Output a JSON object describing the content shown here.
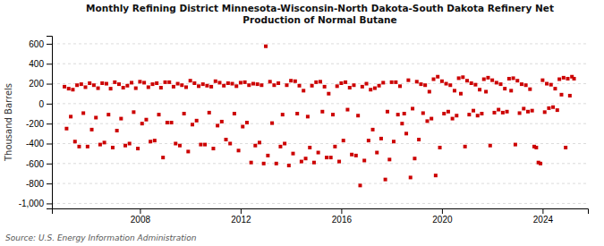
{
  "chart_data": {
    "type": "scatter",
    "title": "Monthly Refining District Minnesota-Wisconsin-North Dakota-South Dakota Refinery Net\nProduction of Normal Butane",
    "y_label": "Thousand Barrels",
    "annotations": [
      {
        "text": "Source: U.S. Energy Information Administration"
      }
    ],
    "color": "#cc0000",
    "marker": "square",
    "grid": true,
    "xlim": [
      2004.5,
      2025.8
    ],
    "xticks": [
      2008,
      2012,
      2016,
      2020,
      2024
    ],
    "ylim": [
      -1050,
      680
    ],
    "yticks": [
      {
        "value": -1000,
        "label": "-1,000"
      },
      -800,
      -600,
      -400,
      -200,
      0,
      200,
      400,
      600
    ],
    "x": [
      2005,
      2005.0833333333333,
      2005.1666666666667,
      2005.25,
      2005.3333333333333,
      2005.4166666666667,
      2005.5,
      2005.5833333333333,
      2005.6666666666667,
      2005.75,
      2005.8333333333333,
      2005.9166666666667,
      2006,
      2006.0833333333333,
      2006.1666666666667,
      2006.25,
      2006.3333333333333,
      2006.4166666666667,
      2006.5,
      2006.5833333333333,
      2006.6666666666667,
      2006.75,
      2006.8333333333333,
      2006.9166666666667,
      2007,
      2007.0833333333333,
      2007.1666666666667,
      2007.25,
      2007.3333333333333,
      2007.4166666666667,
      2007.5,
      2007.5833333333333,
      2007.6666666666667,
      2007.75,
      2007.8333333333333,
      2007.9166666666667,
      2008,
      2008.0833333333333,
      2008.1666666666667,
      2008.25,
      2008.3333333333333,
      2008.4166666666667,
      2008.5,
      2008.5833333333333,
      2008.6666666666667,
      2008.75,
      2008.8333333333333,
      2008.9166666666667,
      2009,
      2009.0833333333333,
      2009.1666666666667,
      2009.25,
      2009.3333333333333,
      2009.4166666666667,
      2009.5,
      2009.5833333333333,
      2009.6666666666667,
      2009.75,
      2009.8333333333333,
      2009.9166666666667,
      2010,
      2010.0833333333333,
      2010.1666666666667,
      2010.25,
      2010.3333333333333,
      2010.4166666666667,
      2010.5,
      2010.5833333333333,
      2010.6666666666667,
      2010.75,
      2010.8333333333333,
      2010.9166666666667,
      2011,
      2011.0833333333333,
      2011.1666666666667,
      2011.25,
      2011.3333333333333,
      2011.4166666666667,
      2011.5,
      2011.5833333333333,
      2011.6666666666667,
      2011.75,
      2011.8333333333333,
      2011.9166666666667,
      2012,
      2012.0833333333333,
      2012.1666666666667,
      2012.25,
      2012.3333333333333,
      2012.4166666666667,
      2012.5,
      2012.5833333333333,
      2012.6666666666667,
      2012.75,
      2012.8333333333333,
      2012.9166666666667,
      2013,
      2013.0833333333333,
      2013.1666666666667,
      2013.25,
      2013.3333333333333,
      2013.4166666666667,
      2013.5,
      2013.5833333333333,
      2013.6666666666667,
      2013.75,
      2013.8333333333333,
      2013.9166666666667,
      2014,
      2014.0833333333333,
      2014.1666666666667,
      2014.25,
      2014.3333333333333,
      2014.4166666666667,
      2014.5,
      2014.5833333333333,
      2014.6666666666667,
      2014.75,
      2014.8333333333333,
      2014.9166666666667,
      2015,
      2015.0833333333333,
      2015.1666666666667,
      2015.25,
      2015.3333333333333,
      2015.4166666666667,
      2015.5,
      2015.5833333333333,
      2015.6666666666667,
      2015.75,
      2015.8333333333333,
      2015.9166666666667,
      2016,
      2016.0833333333333,
      2016.1666666666667,
      2016.25,
      2016.3333333333333,
      2016.4166666666667,
      2016.5,
      2016.5833333333333,
      2016.6666666666667,
      2016.75,
      2016.8333333333333,
      2016.9166666666667,
      2017,
      2017.0833333333333,
      2017.1666666666667,
      2017.25,
      2017.3333333333333,
      2017.4166666666667,
      2017.5,
      2017.5833333333333,
      2017.6666666666667,
      2017.75,
      2017.8333333333333,
      2017.9166666666667,
      2018,
      2018.0833333333333,
      2018.1666666666667,
      2018.25,
      2018.3333333333333,
      2018.4166666666667,
      2018.5,
      2018.5833333333333,
      2018.6666666666667,
      2018.75,
      2018.8333333333333,
      2018.9166666666667,
      2019,
      2019.0833333333333,
      2019.1666666666667,
      2019.25,
      2019.3333333333333,
      2019.4166666666667,
      2019.5,
      2019.5833333333333,
      2019.6666666666667,
      2019.75,
      2019.8333333333333,
      2019.9166666666667,
      2020,
      2020.0833333333333,
      2020.1666666666667,
      2020.25,
      2020.3333333333333,
      2020.4166666666667,
      2020.5,
      2020.5833333333333,
      2020.6666666666667,
      2020.75,
      2020.8333333333333,
      2020.9166666666667,
      2021,
      2021.0833333333333,
      2021.1666666666667,
      2021.25,
      2021.3333333333333,
      2021.4166666666667,
      2021.5,
      2021.5833333333333,
      2021.6666666666667,
      2021.75,
      2021.8333333333333,
      2021.9166666666667,
      2022,
      2022.0833333333333,
      2022.1666666666667,
      2022.25,
      2022.3333333333333,
      2022.4166666666667,
      2022.5,
      2022.5833333333333,
      2022.6666666666667,
      2022.75,
      2022.8333333333333,
      2022.9166666666667,
      2023,
      2023.0833333333333,
      2023.1666666666667,
      2023.25,
      2023.3333333333333,
      2023.4166666666667,
      2023.5,
      2023.5833333333333,
      2023.6666666666667,
      2023.75,
      2023.8333333333333,
      2023.9166666666667,
      2024,
      2024.0833333333333,
      2024.1666666666667,
      2024.25,
      2024.3333333333333,
      2024.4166666666667,
      2024.5,
      2024.5833333333333,
      2024.6666666666667,
      2024.75,
      2024.8333333333333,
      2024.9166666666667,
      2025,
      2025.0833333333333,
      2025.1666666666667,
      2025.25
    ],
    "values": [
      170,
      -250,
      150,
      -130,
      140,
      -380,
      185,
      -430,
      195,
      -95,
      165,
      -430,
      205,
      -260,
      185,
      -140,
      155,
      -410,
      205,
      -390,
      200,
      -110,
      150,
      -440,
      215,
      -270,
      195,
      -150,
      160,
      -420,
      180,
      -400,
      210,
      -85,
      155,
      -450,
      220,
      -200,
      210,
      -160,
      165,
      -380,
      195,
      -370,
      205,
      -110,
      160,
      -540,
      215,
      -190,
      215,
      -190,
      170,
      -400,
      200,
      -420,
      185,
      -100,
      165,
      -480,
      230,
      -210,
      205,
      -170,
      175,
      -410,
      195,
      -410,
      180,
      -90,
      170,
      -450,
      225,
      -220,
      210,
      -180,
      180,
      -360,
      205,
      -400,
      200,
      -100,
      175,
      -470,
      210,
      -230,
      215,
      -190,
      185,
      -590,
      200,
      -420,
      195,
      -390,
      185,
      -600,
      575,
      -520,
      220,
      -195,
      185,
      -600,
      205,
      -430,
      -110,
      -400,
      185,
      -620,
      230,
      -500,
      225,
      -100,
      180,
      -580,
      130,
      -550,
      -130,
      -440,
      180,
      -590,
      215,
      -490,
      220,
      -80,
      170,
      -540,
      100,
      -540,
      -110,
      -430,
      175,
      -580,
      205,
      -370,
      215,
      -60,
      160,
      -510,
      185,
      -520,
      -120,
      -820,
      170,
      -570,
      200,
      -370,
      140,
      -260,
      155,
      -490,
      180,
      -350,
      210,
      -760,
      -80,
      -560,
      215,
      -380,
      215,
      -110,
      175,
      -200,
      -100,
      -300,
      235,
      -740,
      -50,
      -550,
      220,
      -360,
      195,
      -95,
      185,
      -175,
      120,
      -150,
      245,
      -720,
      270,
      -440,
      225,
      -100,
      200,
      -80,
      185,
      -150,
      130,
      -120,
      255,
      100,
      265,
      -430,
      230,
      -110,
      205,
      -70,
      190,
      -120,
      140,
      -100,
      245,
      120,
      260,
      -420,
      235,
      -90,
      210,
      -60,
      195,
      -90,
      150,
      -80,
      250,
      130,
      255,
      -410,
      230,
      -95,
      195,
      -50,
      185,
      -80,
      145,
      -70,
      -430,
      -440,
      -590,
      -600,
      235,
      -85,
      200,
      -45,
      190,
      -35,
      150,
      -65,
      245,
      90,
      260,
      -440,
      250,
      80,
      270,
      250
    ]
  }
}
